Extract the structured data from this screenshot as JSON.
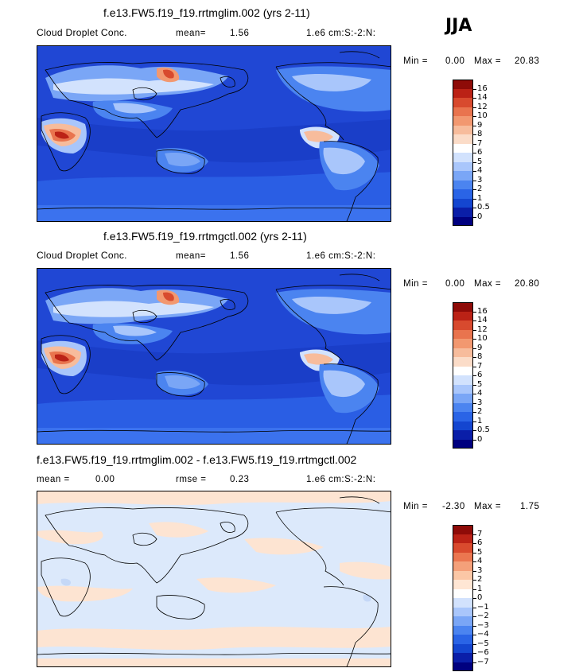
{
  "season": "JJA",
  "colors": {
    "positive_scale": [
      "#00007f",
      "#0a1ea8",
      "#1446d0",
      "#2a64e6",
      "#4b84f0",
      "#7aa6f6",
      "#a9c6fb",
      "#d2e2fd",
      "#ffffff",
      "#fbdcc8",
      "#f7bc9c",
      "#f29870",
      "#e9744e",
      "#d84a2e",
      "#bb2216",
      "#8e0b08"
    ],
    "diff_scale": [
      "#00007f",
      "#0a1ea8",
      "#1446d0",
      "#2a64e6",
      "#4b84f0",
      "#7aa6f6",
      "#a9c6fb",
      "#d2e2fd",
      "#ffffff",
      "#ffe6d4",
      "#fbc7a6",
      "#f4a07a",
      "#eb7650",
      "#d94a2e",
      "#bb2216",
      "#8e0b08"
    ],
    "map_background": "#1f4fd8",
    "ocean_low": "#1d48d2",
    "diff_background": "#dce9fb"
  },
  "panels": [
    {
      "title": "f.e13.FW5.f19_f19.rrtmglim.002 (yrs 2-11)",
      "variable": "Cloud Droplet Conc.",
      "mean_label": "mean=",
      "mean_value": "1.56",
      "units": "1.e6 cm:S:-2:N:",
      "min_label": "Min =",
      "min_value": "0.00",
      "max_label": "Max =",
      "max_value": "20.83",
      "colorbar_ticks": [
        "16",
        "14",
        "12",
        "10",
        "9",
        "8",
        "7",
        "6",
        "5",
        "4",
        "3",
        "2",
        "1",
        "0.5",
        "0"
      ]
    },
    {
      "title": "f.e13.FW5.f19_f19.rrtmgctl.002 (yrs 2-11)",
      "variable": "Cloud Droplet Conc.",
      "mean_label": "mean=",
      "mean_value": "1.56",
      "units": "1.e6 cm:S:-2:N:",
      "min_label": "Min =",
      "min_value": "0.00",
      "max_label": "Max =",
      "max_value": "20.80",
      "colorbar_ticks": [
        "16",
        "14",
        "12",
        "10",
        "9",
        "8",
        "7",
        "6",
        "5",
        "4",
        "3",
        "2",
        "1",
        "0.5",
        "0"
      ]
    },
    {
      "title": "f.e13.FW5.f19_f19.rrtmglim.002 - f.e13.FW5.f19_f19.rrtmgctl.002",
      "mean_label": "mean =",
      "mean_value": "0.00",
      "rmse_label": "rmse =",
      "rmse_value": "0.23",
      "units": "1.e6 cm:S:-2:N:",
      "min_label": "Min =",
      "min_value": "-2.30",
      "max_label": "Max =",
      "max_value": "1.75",
      "colorbar_ticks": [
        "7",
        "6",
        "5",
        "4",
        "3",
        "2",
        "1",
        "0",
        "−1",
        "−2",
        "−3",
        "−4",
        "−5",
        "−6",
        "−7"
      ]
    }
  ]
}
